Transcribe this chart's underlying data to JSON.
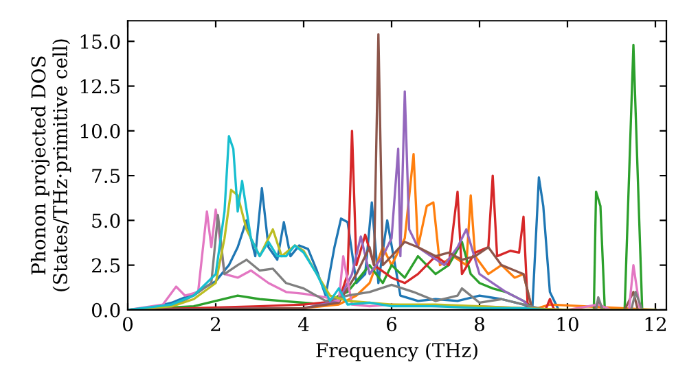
{
  "chart_data": {
    "type": "line",
    "xlabel": "Frequency (THz)",
    "ylabel": "Phonon projected DOS\n(States/THz·primitive cell)",
    "xlim": [
      0,
      12.25
    ],
    "ylim": [
      0,
      16.15
    ],
    "xticks": [
      0,
      2,
      4,
      6,
      8,
      10,
      12
    ],
    "yticks": [
      {
        "value": 0,
        "label": "0.0"
      },
      {
        "value": 2.5,
        "label": "2.5"
      },
      {
        "value": 5,
        "label": "5.0"
      },
      {
        "value": 7.5,
        "label": "7.5"
      },
      {
        "value": 10,
        "label": "10.0"
      },
      {
        "value": 12.5,
        "label": "12.5"
      },
      {
        "value": 15,
        "label": "15.0"
      }
    ],
    "grid": false,
    "legend": false,
    "marker": "none",
    "line_style": "solid",
    "series": [
      {
        "color": "#1f77b4",
        "x": [
          0,
          0.5,
          1,
          1.5,
          2,
          2.3,
          2.5,
          2.7,
          2.9,
          3.05,
          3.2,
          3.4,
          3.55,
          3.7,
          3.9,
          4.1,
          4.3,
          4.5,
          4.7,
          4.85,
          5.0,
          5.2,
          5.4,
          5.55,
          5.7,
          5.9,
          6.2,
          6.6,
          7,
          7.5,
          8,
          8.5,
          9,
          9.2,
          9.35,
          9.45,
          9.6,
          9.8,
          12
        ],
        "values": [
          0,
          0.1,
          0.4,
          0.9,
          1.6,
          2.5,
          3.5,
          5.0,
          3.0,
          6.8,
          3.5,
          2.8,
          4.9,
          3.0,
          3.6,
          3.4,
          2.2,
          0.8,
          3.5,
          5.1,
          4.9,
          1.5,
          2.0,
          6.0,
          1.5,
          5.0,
          0.8,
          0.5,
          0.6,
          0.5,
          0.8,
          0.6,
          0.3,
          0.0,
          7.4,
          5.8,
          1.0,
          0,
          0
        ]
      },
      {
        "color": "#ff7f0e",
        "x": [
          0,
          4,
          4.8,
          5.2,
          5.5,
          5.8,
          6.0,
          6.3,
          6.5,
          6.6,
          6.8,
          6.95,
          7.1,
          7.4,
          7.7,
          7.8,
          7.9,
          8.2,
          8.5,
          8.8,
          9.0,
          9.2,
          9.6,
          12
        ],
        "values": [
          0,
          0.1,
          0.3,
          0.8,
          1.5,
          3.5,
          2.5,
          4.0,
          8.7,
          3.5,
          5.8,
          6.0,
          2.5,
          3.0,
          2.5,
          6.4,
          3.0,
          2.0,
          2.5,
          1.8,
          2.0,
          0,
          0.3,
          0
        ]
      },
      {
        "color": "#2ca02c",
        "x": [
          0,
          1.5,
          2,
          2.5,
          3,
          3.5,
          4,
          4.5,
          4.8,
          5,
          5.5,
          5.8,
          6.0,
          6.3,
          6.6,
          7,
          7.3,
          7.6,
          7.8,
          8,
          8.3,
          8.6,
          9,
          9.3,
          9.5,
          10,
          10.6,
          10.65,
          10.75,
          10.85,
          11.3,
          11.5,
          11.7,
          12
        ],
        "values": [
          0,
          0.2,
          0.5,
          0.8,
          0.6,
          0.5,
          0.4,
          0.3,
          0.8,
          1.0,
          2.5,
          1.5,
          2.5,
          1.8,
          3.0,
          2.0,
          2.5,
          3.8,
          2.0,
          1.5,
          1.2,
          1.0,
          0.5,
          0,
          0,
          0,
          0,
          6.6,
          5.8,
          0,
          0,
          14.8,
          0,
          0
        ]
      },
      {
        "color": "#d62728",
        "x": [
          0,
          3,
          4,
          4.8,
          5.0,
          5.1,
          5.2,
          5.4,
          5.6,
          6,
          6.3,
          6.6,
          7,
          7.3,
          7.5,
          7.6,
          7.9,
          8.2,
          8.3,
          8.4,
          8.7,
          8.9,
          9.0,
          9.1,
          9.5,
          9.6,
          9.7,
          10,
          12
        ],
        "values": [
          0,
          0.2,
          0.3,
          0.5,
          2.0,
          10.0,
          2.5,
          4.2,
          2.5,
          1.8,
          1.5,
          2.0,
          3.0,
          2.5,
          6.6,
          2.0,
          3.2,
          3.5,
          7.5,
          3.0,
          3.3,
          3.2,
          5.2,
          0,
          0,
          0.6,
          0,
          0,
          0
        ]
      },
      {
        "color": "#9467bd",
        "x": [
          0,
          4,
          4.8,
          5.1,
          5.3,
          5.5,
          5.8,
          6.0,
          6.15,
          6.2,
          6.3,
          6.4,
          6.6,
          6.9,
          7.2,
          7.5,
          7.7,
          8.0,
          8.3,
          8.6,
          9,
          9.2,
          12
        ],
        "values": [
          0,
          0.1,
          0.5,
          2.0,
          4.1,
          2.0,
          3.0,
          4.0,
          9.0,
          3.0,
          12.2,
          4.5,
          3.5,
          3.0,
          2.5,
          3.5,
          4.5,
          2.0,
          1.5,
          1.0,
          0.5,
          0,
          0
        ]
      },
      {
        "color": "#8c564b",
        "x": [
          0,
          4,
          4.8,
          5.2,
          5.5,
          5.6,
          5.7,
          5.8,
          6.0,
          6.3,
          6.6,
          7,
          7.3,
          7.6,
          7.9,
          8.2,
          8.5,
          8.8,
          9.0,
          9.2,
          9.5,
          10,
          10.6,
          10.7,
          10.8,
          11.3,
          11.5,
          11.6,
          12
        ],
        "values": [
          0,
          0.1,
          0.4,
          2.0,
          3.5,
          2.5,
          15.4,
          2.5,
          3.0,
          3.8,
          3.5,
          3.0,
          3.2,
          2.8,
          3.0,
          3.5,
          2.5,
          2.2,
          2.0,
          0,
          0,
          0,
          0,
          0.5,
          0,
          0,
          1.0,
          0,
          0
        ]
      },
      {
        "color": "#e377c2",
        "x": [
          0,
          0.8,
          1.1,
          1.3,
          1.6,
          1.8,
          1.9,
          2.0,
          2.2,
          2.5,
          2.8,
          3.2,
          3.6,
          4.0,
          4.5,
          4.8,
          4.9,
          5.1,
          5.5,
          6,
          7,
          8,
          9,
          10,
          10.7,
          11,
          11.4,
          11.5,
          11.65,
          12
        ],
        "values": [
          0,
          0.3,
          1.3,
          0.8,
          1.0,
          5.5,
          3.5,
          5.6,
          2.0,
          1.8,
          2.2,
          1.5,
          1.0,
          0.9,
          0.7,
          0.5,
          3.0,
          0.3,
          0.2,
          0.3,
          0.2,
          0.2,
          0.1,
          0,
          0.3,
          0,
          0,
          2.5,
          0,
          0
        ]
      },
      {
        "color": "#7f7f7f",
        "x": [
          0,
          1,
          1.5,
          1.9,
          2.05,
          2.2,
          2.5,
          2.7,
          3.0,
          3.3,
          3.6,
          4.0,
          4.5,
          5,
          5.5,
          6,
          6.5,
          7,
          7.5,
          7.6,
          8,
          8.5,
          9,
          9.5,
          10,
          10.65,
          10.7,
          10.8,
          11,
          11.45,
          11.55,
          11.7,
          12
        ],
        "values": [
          0,
          0.2,
          0.8,
          1.5,
          5.3,
          2.0,
          2.5,
          2.8,
          2.2,
          2.3,
          1.5,
          1.2,
          0.5,
          0.8,
          1.0,
          1.4,
          1.0,
          0.5,
          0.8,
          1.2,
          0.4,
          0.6,
          0.3,
          0,
          0,
          0,
          0.7,
          0,
          0,
          0,
          1.0,
          0,
          0
        ]
      },
      {
        "color": "#bcbd22",
        "x": [
          0,
          1,
          1.5,
          2,
          2.2,
          2.35,
          2.5,
          2.7,
          3.0,
          3.3,
          3.5,
          3.8,
          4.0,
          4.3,
          4.6,
          5,
          5.5,
          6,
          7,
          8,
          9,
          10,
          12
        ],
        "values": [
          0,
          0.2,
          0.6,
          1.5,
          4.0,
          6.7,
          6.4,
          4.5,
          3.0,
          4.5,
          3.0,
          3.6,
          3.3,
          2.0,
          0.8,
          0.5,
          0.4,
          0.3,
          0.3,
          0.2,
          0.1,
          0,
          0
        ]
      },
      {
        "color": "#17becf",
        "x": [
          0,
          1,
          1.5,
          2,
          2.2,
          2.3,
          2.4,
          2.5,
          2.6,
          2.8,
          3.0,
          3.2,
          3.4,
          3.6,
          3.8,
          4.0,
          4.3,
          4.6,
          4.8,
          5,
          5.5,
          6,
          7,
          8,
          9,
          9.5
        ],
        "values": [
          0,
          0.3,
          0.8,
          2.0,
          5.5,
          9.7,
          9.0,
          5.5,
          7.2,
          4.0,
          3.0,
          3.8,
          3.0,
          3.0,
          3.6,
          3.2,
          2.0,
          0.5,
          1.2,
          0.3,
          0.4,
          0.2,
          0.2,
          0.1,
          0.1,
          0
        ]
      }
    ]
  }
}
